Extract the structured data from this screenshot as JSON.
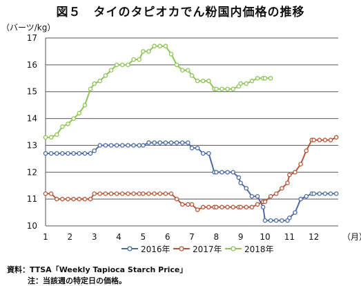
{
  "title": "図５　タイのタピオカでん粉国内価格の推移",
  "unit_label": "（バーツ/kg）",
  "source": "資料：TTSA「Weekly Tapioca Starch Price」",
  "note": "注：当該週の特定日の価格。",
  "chart_data": {
    "type": "line",
    "title": "図５　タイのタピオカでん粉国内価格の推移",
    "ylabel": "（バーツ/kg）",
    "xlabel": "（月）",
    "ylim": [
      10,
      17
    ],
    "yticks": [
      10,
      11,
      12,
      13,
      14,
      15,
      16,
      17
    ],
    "xlim": [
      1,
      13
    ],
    "xticks": [
      1,
      2,
      3,
      4,
      5,
      6,
      7,
      8,
      9,
      10,
      11,
      12
    ],
    "grid": "horizontal",
    "legend_position": "bottom",
    "series": [
      {
        "name": "2016年",
        "color": "#4a6aa6",
        "x": [
          1.0,
          1.23,
          1.46,
          1.69,
          1.92,
          2.15,
          2.38,
          2.61,
          2.84,
          3.0,
          3.23,
          3.46,
          3.69,
          3.92,
          4.15,
          4.38,
          4.61,
          4.84,
          5.0,
          5.23,
          5.46,
          5.69,
          5.92,
          6.15,
          6.38,
          6.61,
          6.84,
          7.0,
          7.23,
          7.46,
          7.69,
          7.92,
          8.0,
          8.23,
          8.46,
          8.69,
          8.92,
          9.0,
          9.23,
          9.46,
          9.69,
          9.92,
          10.0,
          10.23,
          10.46,
          10.69,
          10.92,
          11.0,
          11.23,
          11.46,
          11.69,
          11.92,
          12.0,
          12.23,
          12.46,
          12.69,
          12.92
        ],
        "values": [
          12.7,
          12.7,
          12.7,
          12.7,
          12.7,
          12.7,
          12.7,
          12.7,
          12.7,
          12.8,
          13.0,
          13.0,
          13.0,
          13.0,
          13.0,
          13.0,
          13.0,
          13.0,
          13.0,
          13.1,
          13.1,
          13.1,
          13.1,
          13.1,
          13.1,
          13.1,
          13.1,
          12.9,
          12.9,
          12.7,
          12.7,
          12.0,
          12.0,
          12.0,
          12.0,
          12.0,
          11.8,
          11.6,
          11.4,
          11.1,
          11.1,
          10.7,
          10.2,
          10.2,
          10.2,
          10.2,
          10.2,
          10.3,
          10.5,
          11.0,
          11.1,
          11.2,
          11.2,
          11.2,
          11.2,
          11.2,
          11.2
        ]
      },
      {
        "name": "2017年",
        "color": "#b8563a",
        "x": [
          1.0,
          1.23,
          1.46,
          1.69,
          1.92,
          2.15,
          2.38,
          2.61,
          2.84,
          3.0,
          3.23,
          3.46,
          3.69,
          3.92,
          4.15,
          4.38,
          4.61,
          4.84,
          5.0,
          5.23,
          5.46,
          5.69,
          5.92,
          6.15,
          6.38,
          6.61,
          6.84,
          7.0,
          7.23,
          7.46,
          7.69,
          7.92,
          8.0,
          8.23,
          8.46,
          8.69,
          8.92,
          9.0,
          9.23,
          9.46,
          9.69,
          9.92,
          10.0,
          10.23,
          10.46,
          10.69,
          10.92,
          11.0,
          11.23,
          11.46,
          11.69,
          11.92,
          12.0,
          12.23,
          12.46,
          12.69,
          12.92
        ],
        "values": [
          11.2,
          11.2,
          11.0,
          11.0,
          11.0,
          11.0,
          11.0,
          11.0,
          11.0,
          11.2,
          11.2,
          11.2,
          11.2,
          11.2,
          11.2,
          11.2,
          11.2,
          11.2,
          11.2,
          11.2,
          11.2,
          11.2,
          11.2,
          11.2,
          11.0,
          10.8,
          10.8,
          10.8,
          10.6,
          10.7,
          10.7,
          10.7,
          10.7,
          10.7,
          10.7,
          10.7,
          10.7,
          10.7,
          10.7,
          10.7,
          10.8,
          10.9,
          10.9,
          11.1,
          11.2,
          11.4,
          11.6,
          11.9,
          12.0,
          12.3,
          12.8,
          13.2,
          13.2,
          13.2,
          13.2,
          13.2,
          13.3
        ]
      },
      {
        "name": "2018年",
        "color": "#8cc552",
        "x": [
          1.0,
          1.23,
          1.46,
          1.69,
          1.92,
          2.15,
          2.38,
          2.61,
          2.84,
          3.0,
          3.23,
          3.46,
          3.69,
          3.92,
          4.15,
          4.38,
          4.61,
          4.84,
          5.0,
          5.23,
          5.46,
          5.69,
          5.92,
          6.15,
          6.38,
          6.61,
          6.84,
          7.0,
          7.23,
          7.46,
          7.69,
          7.92,
          8.0,
          8.23,
          8.46,
          8.69,
          8.92,
          9.0,
          9.23,
          9.46,
          9.69,
          9.92,
          10.0,
          10.23
        ],
        "values": [
          13.3,
          13.3,
          13.4,
          13.7,
          13.8,
          14.0,
          14.2,
          14.5,
          15.1,
          15.3,
          15.4,
          15.6,
          15.8,
          16.0,
          16.0,
          16.0,
          16.2,
          16.2,
          16.5,
          16.5,
          16.7,
          16.7,
          16.7,
          16.4,
          16.0,
          15.8,
          15.8,
          15.6,
          15.4,
          15.4,
          15.4,
          15.1,
          15.1,
          15.1,
          15.1,
          15.1,
          15.2,
          15.3,
          15.3,
          15.4,
          15.5,
          15.5,
          15.5,
          15.5
        ]
      }
    ]
  }
}
